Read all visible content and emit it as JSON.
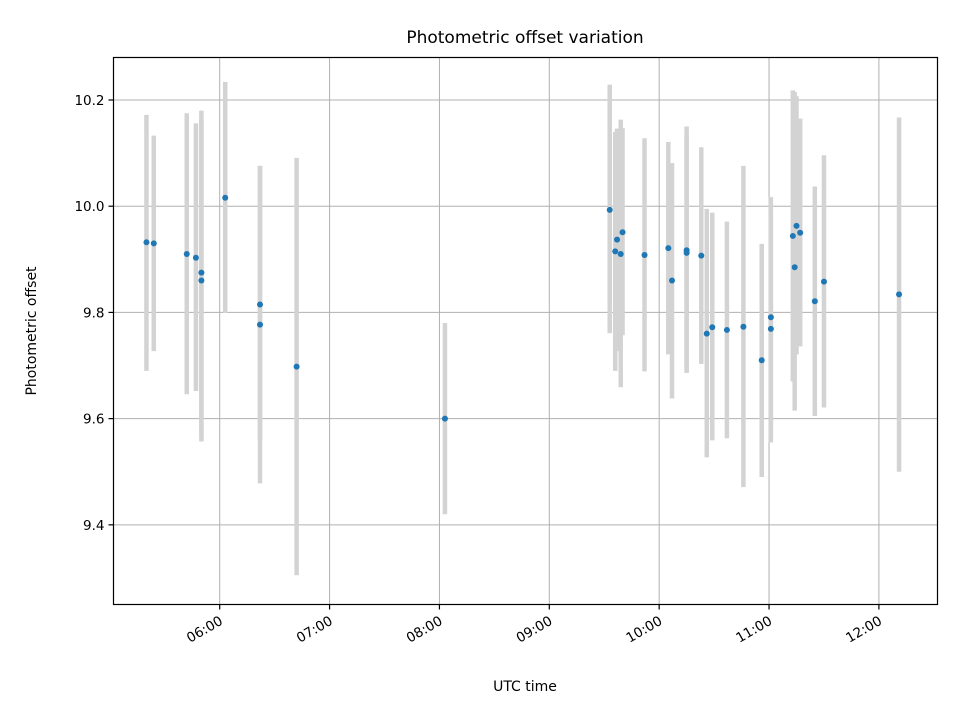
{
  "chart_data": {
    "type": "scatter",
    "title": "Photometric offset variation",
    "xlabel": "UTC time",
    "ylabel": "Photometric offset",
    "x_ticks": [
      "06:00",
      "07:00",
      "08:00",
      "09:00",
      "10:00",
      "11:00",
      "12:00"
    ],
    "y_ticks": [
      "9.4",
      "9.6",
      "9.8",
      "10.0",
      "10.2"
    ],
    "xlim": [
      "05:02",
      "12:32"
    ],
    "ylim": [
      9.25,
      10.28
    ],
    "grid": true,
    "point_color": "#1f77b4",
    "errorbar_color": "#d3d3d3",
    "points": [
      {
        "x": "05:20",
        "y": 9.932,
        "lo": 9.69,
        "hi": 10.172
      },
      {
        "x": "05:24",
        "y": 9.93,
        "lo": 9.727,
        "hi": 10.133
      },
      {
        "x": "05:42",
        "y": 9.91,
        "lo": 9.646,
        "hi": 10.175
      },
      {
        "x": "05:47",
        "y": 9.903,
        "lo": 9.652,
        "hi": 10.156
      },
      {
        "x": "05:50",
        "y": 9.875,
        "lo": 9.57,
        "hi": 10.18
      },
      {
        "x": "05:50",
        "y": 9.86,
        "lo": 9.557,
        "hi": 10.163
      },
      {
        "x": "06:03",
        "y": 10.016,
        "lo": 9.799,
        "hi": 10.234
      },
      {
        "x": "06:22",
        "y": 9.815,
        "lo": 9.56,
        "hi": 10.076
      },
      {
        "x": "06:22",
        "y": 9.777,
        "lo": 9.478,
        "hi": 10.076
      },
      {
        "x": "06:42",
        "y": 9.698,
        "lo": 9.305,
        "hi": 10.091
      },
      {
        "x": "08:03",
        "y": 9.6,
        "lo": 9.42,
        "hi": 9.78
      },
      {
        "x": "09:33",
        "y": 9.993,
        "lo": 9.761,
        "hi": 10.229
      },
      {
        "x": "09:36",
        "y": 9.915,
        "lo": 9.69,
        "hi": 10.14
      },
      {
        "x": "09:37",
        "y": 9.937,
        "lo": 9.727,
        "hi": 10.146
      },
      {
        "x": "09:39",
        "y": 9.91,
        "lo": 9.659,
        "hi": 10.163
      },
      {
        "x": "09:40",
        "y": 9.951,
        "lo": 9.757,
        "hi": 10.147
      },
      {
        "x": "09:52",
        "y": 9.908,
        "lo": 9.689,
        "hi": 10.128
      },
      {
        "x": "10:05",
        "y": 9.921,
        "lo": 9.721,
        "hi": 10.121
      },
      {
        "x": "10:07",
        "y": 9.86,
        "lo": 9.638,
        "hi": 10.081
      },
      {
        "x": "10:15",
        "y": 9.917,
        "lo": 9.686,
        "hi": 10.15
      },
      {
        "x": "10:15",
        "y": 9.912,
        "lo": 9.688,
        "hi": 10.136
      },
      {
        "x": "10:23",
        "y": 9.907,
        "lo": 9.703,
        "hi": 10.111
      },
      {
        "x": "10:26",
        "y": 9.76,
        "lo": 9.527,
        "hi": 9.995
      },
      {
        "x": "10:29",
        "y": 9.772,
        "lo": 9.559,
        "hi": 9.988
      },
      {
        "x": "10:37",
        "y": 9.767,
        "lo": 9.563,
        "hi": 9.971
      },
      {
        "x": "10:46",
        "y": 9.773,
        "lo": 9.471,
        "hi": 10.076
      },
      {
        "x": "10:56",
        "y": 9.71,
        "lo": 9.49,
        "hi": 9.929
      },
      {
        "x": "11:01",
        "y": 9.791,
        "lo": 9.567,
        "hi": 10.017
      },
      {
        "x": "11:01",
        "y": 9.769,
        "lo": 9.555,
        "hi": 9.984
      },
      {
        "x": "11:13",
        "y": 9.944,
        "lo": 9.67,
        "hi": 10.218
      },
      {
        "x": "11:14",
        "y": 9.885,
        "lo": 9.615,
        "hi": 10.215
      },
      {
        "x": "11:15",
        "y": 9.963,
        "lo": 9.721,
        "hi": 10.207
      },
      {
        "x": "11:17",
        "y": 9.95,
        "lo": 9.736,
        "hi": 10.165
      },
      {
        "x": "11:25",
        "y": 9.821,
        "lo": 9.605,
        "hi": 10.037
      },
      {
        "x": "11:30",
        "y": 9.858,
        "lo": 9.621,
        "hi": 10.096
      },
      {
        "x": "12:11",
        "y": 9.834,
        "lo": 9.5,
        "hi": 10.167
      }
    ]
  }
}
